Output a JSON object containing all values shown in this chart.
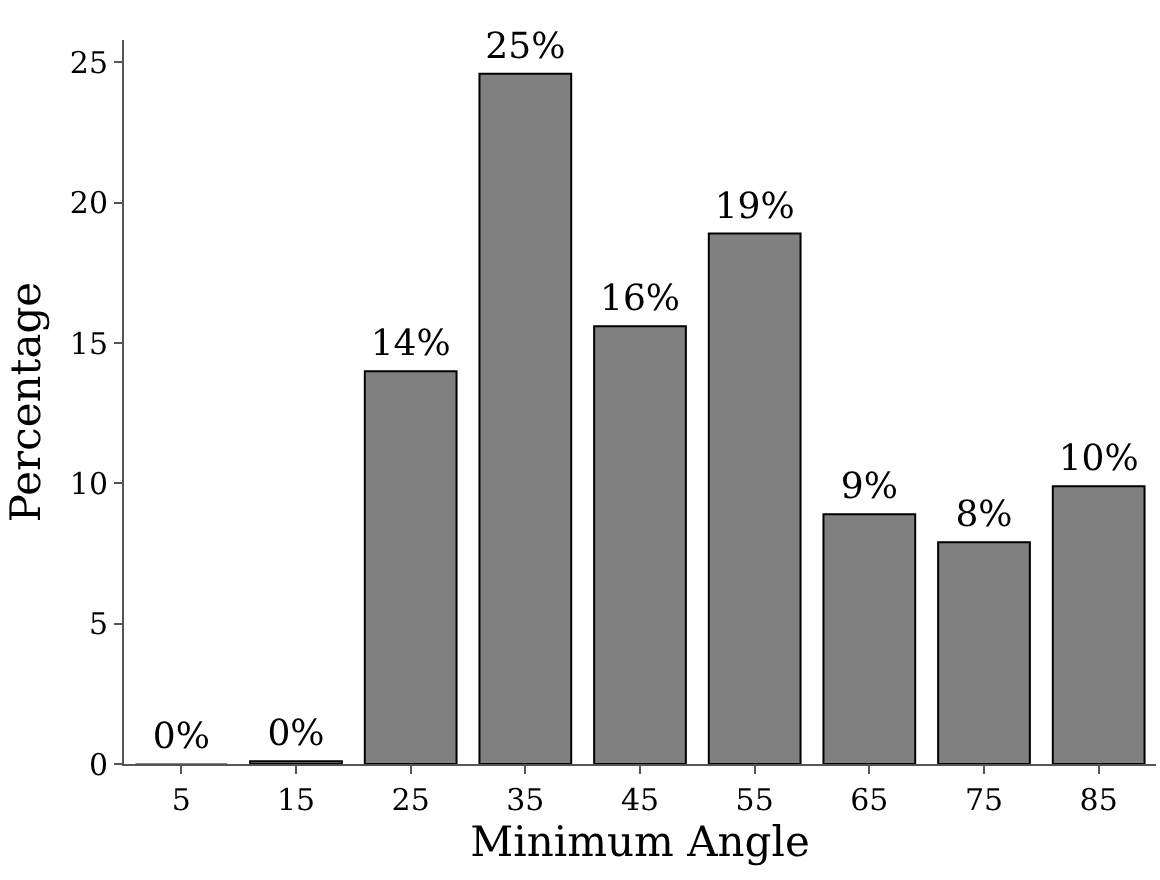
{
  "chart_data": {
    "type": "bar",
    "xlabel": "Minimum Angle",
    "ylabel": "Percentage",
    "categories": [
      "5",
      "15",
      "25",
      "35",
      "45",
      "55",
      "65",
      "75",
      "85"
    ],
    "values": [
      0,
      0.1,
      14.0,
      24.6,
      15.6,
      18.9,
      8.9,
      7.9,
      9.9
    ],
    "value_labels": [
      "0%",
      "0%",
      "14%",
      "25%",
      "16%",
      "19%",
      "9%",
      "8%",
      "10%"
    ],
    "color": "#808080",
    "ylim": [
      0,
      25.8
    ],
    "yticks": [
      0,
      5,
      10,
      15,
      20,
      25
    ],
    "grid": false,
    "legend": false
  }
}
